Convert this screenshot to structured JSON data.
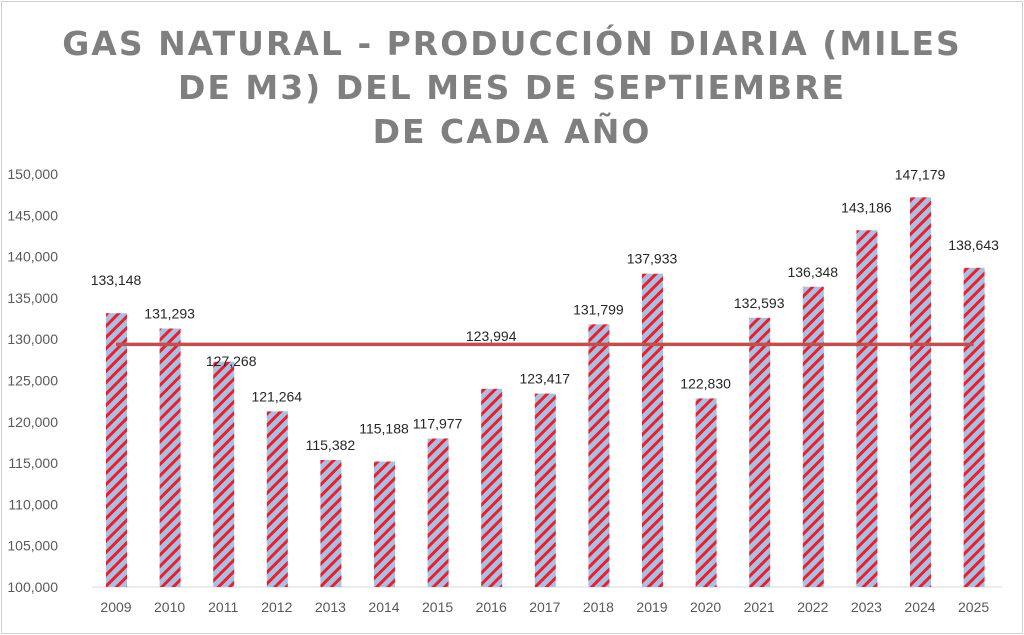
{
  "chart_data": {
    "type": "bar",
    "title_lines": [
      "GAS NATURAL - PRODUCCIÓN DIARIA (MILES",
      "DE M3) DEL MES DE SEPTIEMBRE",
      "DE CADA AÑO"
    ],
    "categories": [
      "2009",
      "2010",
      "2011",
      "2012",
      "2013",
      "2014",
      "2015",
      "2016",
      "2017",
      "2018",
      "2019",
      "2020",
      "2021",
      "2022",
      "2023",
      "2024",
      "2025"
    ],
    "values": [
      133148,
      131293,
      127268,
      121264,
      115382,
      115188,
      117977,
      123994,
      123417,
      131799,
      137933,
      122830,
      132593,
      136348,
      143186,
      147179,
      138643
    ],
    "data_labels": [
      "133,148",
      "131,293",
      "127,268",
      "121,264",
      "115,382",
      "115,188",
      "117,977",
      "123,994",
      "123,417",
      "131,799",
      "137,933",
      "122,830",
      "132,593",
      "136,348",
      "143,186",
      "147,179",
      "138,643"
    ],
    "average_line": 129379,
    "ylim": [
      100000,
      150000
    ],
    "yticks": [
      "100,000",
      "105,000",
      "110,000",
      "115,000",
      "120,000",
      "125,000",
      "130,000",
      "135,000",
      "140,000",
      "145,000",
      "150,000"
    ],
    "xlabel": "",
    "ylabel": "",
    "grid": false,
    "colors": {
      "bar_stripe": "#e8202a",
      "bar_base": "#a9c0e4",
      "average": "#c0504d",
      "axis_text": "#595959",
      "title": "#7f7f7f"
    }
  }
}
